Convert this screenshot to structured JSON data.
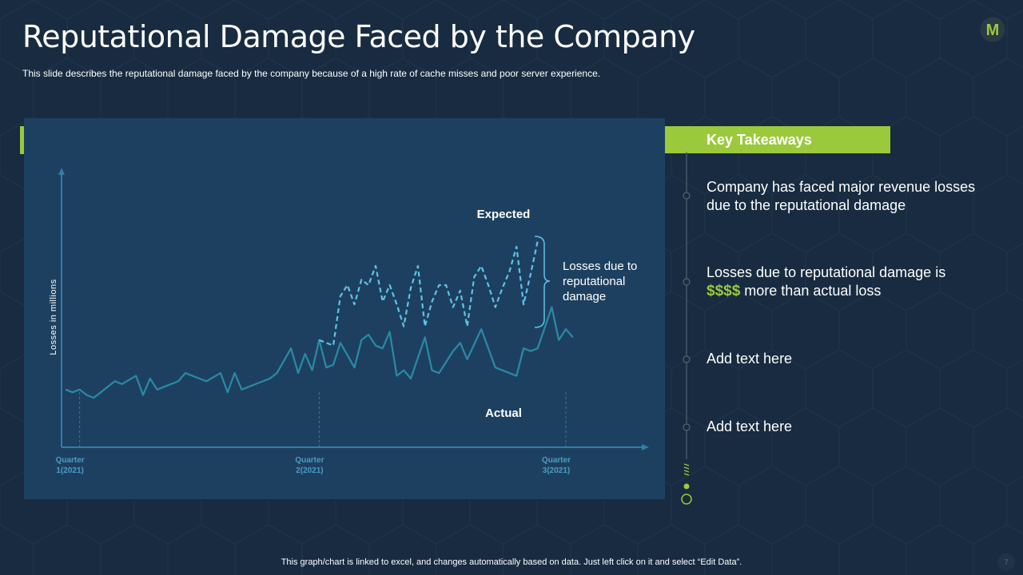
{
  "slide": {
    "title": "Reputational Damage Faced by the Company",
    "subtitle": "This slide describes the reputational damage faced by the company because of a high rate of cache misses and poor server experience.",
    "footer": "This graph/chart is linked to excel, and changes automatically based on data. Just left click on it and select “Edit Data”.",
    "page_number": "7"
  },
  "logo": {
    "letter": "M",
    "icon": "m-logo-icon"
  },
  "colors": {
    "background": "#182b40",
    "panel": "#1e4060",
    "accent": "#9bc93c",
    "actual_line": "#2a8aa6",
    "expected_line": "#5ec4e6",
    "axis": "#2f7fa6",
    "tick_label": "#4a9cc6"
  },
  "key_takeaways": {
    "header": "Key Takeaways",
    "items": [
      {
        "text": "Company has faced major revenue losses due to the reputational damage"
      },
      {
        "pre": "Losses due to reputational damage is",
        "highlight": "$$$$",
        "post": "more than actual loss"
      },
      {
        "text": "Add text here"
      },
      {
        "text": "Add text here"
      }
    ]
  },
  "chart_data": {
    "type": "line",
    "title": "",
    "xlabel": "",
    "ylabel": "Losses in millions",
    "x_ticks": [
      {
        "label_line1": "Quarter",
        "label_line2": "1(2021)",
        "x": 2
      },
      {
        "label_line1": "Quarter",
        "label_line2": "2(2021)",
        "x": 36
      },
      {
        "label_line1": "Quarter",
        "label_line2": "3(2021)",
        "x": 71
      }
    ],
    "xlim": [
      0,
      82
    ],
    "ylim": [
      0,
      100
    ],
    "grid": false,
    "annotations": {
      "expected_label": "Expected",
      "actual_label": "Actual",
      "bracket_label_lines": [
        "Losses due to",
        "reputational",
        "damage"
      ]
    },
    "series": [
      {
        "name": "Actual",
        "style": "solid",
        "points": [
          [
            0,
            21
          ],
          [
            1,
            20
          ],
          [
            2,
            21
          ],
          [
            3,
            19
          ],
          [
            4,
            18
          ],
          [
            5,
            20
          ],
          [
            7,
            24
          ],
          [
            8,
            23
          ],
          [
            10,
            26
          ],
          [
            11,
            19
          ],
          [
            12,
            25
          ],
          [
            13,
            21
          ],
          [
            14,
            22
          ],
          [
            16,
            24
          ],
          [
            17,
            27
          ],
          [
            19,
            25
          ],
          [
            20,
            24
          ],
          [
            22,
            27
          ],
          [
            23,
            20
          ],
          [
            24,
            27
          ],
          [
            25,
            21
          ],
          [
            27,
            23
          ],
          [
            29,
            25
          ],
          [
            30,
            27
          ],
          [
            32,
            36
          ],
          [
            33,
            27
          ],
          [
            34,
            34
          ],
          [
            35,
            28
          ],
          [
            36,
            39
          ],
          [
            37,
            29
          ],
          [
            38,
            30
          ],
          [
            39,
            38
          ],
          [
            41,
            29
          ],
          [
            42,
            39
          ],
          [
            43,
            41
          ],
          [
            44,
            37
          ],
          [
            45,
            36
          ],
          [
            46,
            42
          ],
          [
            47,
            26
          ],
          [
            48,
            28
          ],
          [
            49,
            25
          ],
          [
            51,
            40
          ],
          [
            52,
            28
          ],
          [
            53,
            27
          ],
          [
            55,
            35
          ],
          [
            56,
            38
          ],
          [
            57,
            32
          ],
          [
            59,
            43
          ],
          [
            61,
            29
          ],
          [
            62,
            28
          ],
          [
            64,
            26
          ],
          [
            65,
            36
          ],
          [
            66,
            35
          ],
          [
            67,
            36
          ],
          [
            69,
            51
          ],
          [
            70,
            39
          ],
          [
            71,
            43
          ],
          [
            72,
            40
          ]
        ]
      },
      {
        "name": "Expected",
        "style": "dashed",
        "points": [
          [
            36,
            39
          ],
          [
            37,
            38
          ],
          [
            38,
            37
          ],
          [
            39,
            55
          ],
          [
            40,
            59
          ],
          [
            41,
            52
          ],
          [
            42,
            61
          ],
          [
            43,
            59
          ],
          [
            44,
            66
          ],
          [
            45,
            53
          ],
          [
            46,
            59
          ],
          [
            47,
            52
          ],
          [
            48,
            44
          ],
          [
            49,
            58
          ],
          [
            50,
            66
          ],
          [
            51,
            44
          ],
          [
            52,
            53
          ],
          [
            53,
            59
          ],
          [
            54,
            59
          ],
          [
            55,
            51
          ],
          [
            56,
            57
          ],
          [
            57,
            44
          ],
          [
            58,
            62
          ],
          [
            59,
            66
          ],
          [
            60,
            59
          ],
          [
            61,
            51
          ],
          [
            62,
            58
          ],
          [
            63,
            64
          ],
          [
            64,
            73
          ],
          [
            65,
            52
          ],
          [
            66,
            63
          ],
          [
            67,
            75
          ]
        ]
      }
    ]
  }
}
